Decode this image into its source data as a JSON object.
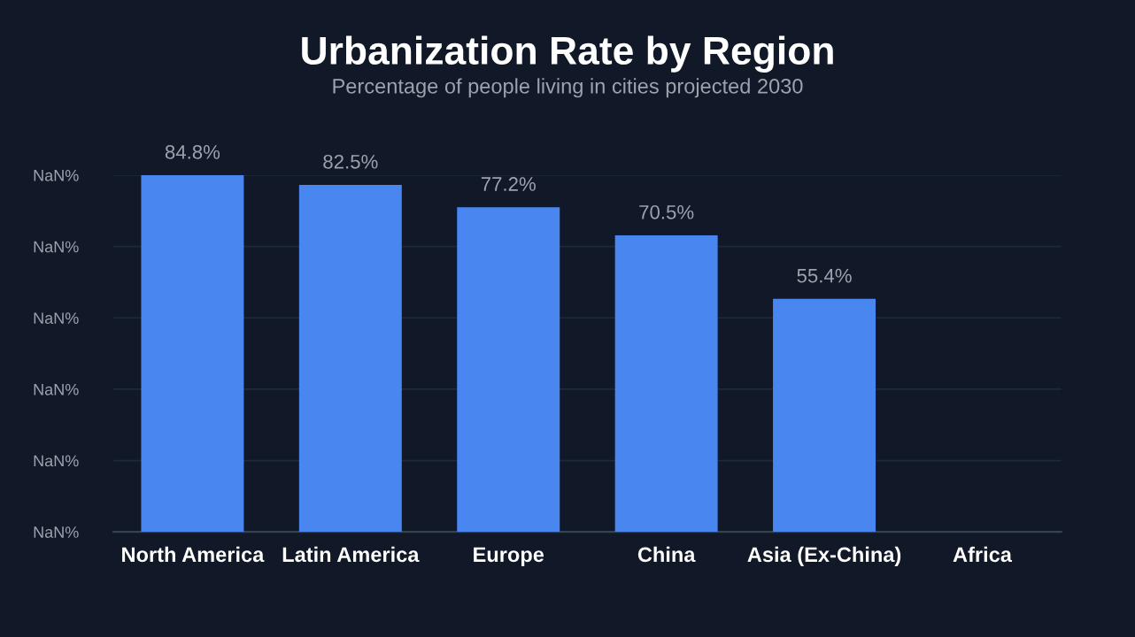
{
  "chart_data": {
    "type": "bar",
    "title": "Urbanization Rate by Region",
    "subtitle": "Percentage of people living in cities projected 2030",
    "categories": [
      "North America",
      "Latin America",
      "Europe",
      "China",
      "Asia (Ex-China)",
      "Africa"
    ],
    "values": [
      84.8,
      82.5,
      77.2,
      70.5,
      55.4,
      null
    ],
    "value_labels": [
      "84.8%",
      "82.5%",
      "77.2%",
      "70.5%",
      "55.4%",
      null
    ],
    "color": "#4a86f0",
    "annotations": [
      "NaN%",
      "NaN%",
      "NaN%",
      "NaN%",
      "NaN%",
      "NaN%"
    ],
    "grid": "y",
    "legend": false
  }
}
